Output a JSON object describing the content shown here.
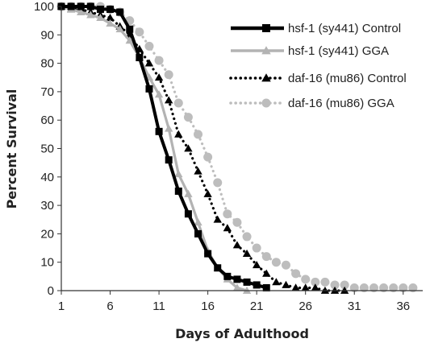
{
  "chart_data": {
    "type": "line",
    "xlabel": "Days of Adulthood",
    "ylabel": "Percent Survival",
    "xlim": [
      1,
      38
    ],
    "ylim": [
      0,
      100
    ],
    "x_ticks": [
      1,
      6,
      11,
      16,
      21,
      26,
      31,
      36
    ],
    "y_ticks": [
      0,
      10,
      20,
      30,
      40,
      50,
      60,
      70,
      80,
      90,
      100
    ],
    "x_tick_labels": [
      "1",
      "6",
      "11",
      "16",
      "21",
      "26",
      "31",
      "36"
    ],
    "y_tick_labels": [
      "0",
      "10",
      "20",
      "30",
      "40",
      "50",
      "60",
      "70",
      "80",
      "90",
      "100"
    ],
    "legend_position": "top-right",
    "series": [
      {
        "name": "hsf-1 (sy441) Control",
        "color": "#000000",
        "line": "solid",
        "marker": "square",
        "x": [
          1,
          2,
          3,
          4,
          5,
          6,
          7,
          8,
          9,
          10,
          11,
          12,
          13,
          14,
          15,
          16,
          17,
          18,
          19,
          20,
          21,
          22
        ],
        "y": [
          100,
          100,
          100,
          100,
          99,
          99,
          98,
          92,
          82,
          71,
          56,
          46,
          35,
          27,
          20,
          13,
          8,
          5,
          4,
          3,
          2,
          1
        ]
      },
      {
        "name": "hsf-1 (sy441) GGA",
        "color": "#b3b3b3",
        "line": "solid",
        "marker": "triangle",
        "x": [
          1,
          2,
          3,
          4,
          5,
          6,
          7,
          8,
          9,
          10,
          11,
          12,
          13,
          14,
          15,
          16,
          17,
          18,
          19,
          20
        ],
        "y": [
          100,
          99,
          98,
          97,
          96,
          94,
          92,
          88,
          82,
          75,
          69,
          57,
          41,
          34,
          24,
          14,
          8,
          4,
          1,
          0
        ]
      },
      {
        "name": "daf-16 (mu86) Control",
        "color": "#000000",
        "line": "dotted",
        "marker": "triangle",
        "x": [
          1,
          2,
          3,
          4,
          5,
          6,
          7,
          8,
          9,
          10,
          11,
          12,
          13,
          14,
          15,
          16,
          17,
          18,
          19,
          20,
          21,
          22,
          23,
          24,
          25,
          26,
          27,
          28,
          29,
          30
        ],
        "y": [
          100,
          99,
          99,
          98,
          97,
          96,
          93,
          90,
          85,
          80,
          75,
          67,
          55,
          50,
          42,
          34,
          25,
          22,
          16,
          13,
          9,
          6,
          3,
          2,
          1,
          1,
          1,
          0,
          0,
          0
        ]
      },
      {
        "name": "daf-16 (mu86) GGA",
        "color": "#bdbdbd",
        "line": "dotted",
        "marker": "circle",
        "x": [
          1,
          2,
          3,
          4,
          5,
          6,
          7,
          8,
          9,
          10,
          11,
          12,
          13,
          14,
          15,
          16,
          17,
          18,
          19,
          20,
          21,
          22,
          23,
          24,
          25,
          26,
          27,
          28,
          29,
          30,
          31,
          32,
          33,
          34,
          35,
          36,
          37
        ],
        "y": [
          100,
          100,
          100,
          100,
          100,
          99,
          98,
          95,
          91,
          86,
          81,
          76,
          66,
          61,
          55,
          47,
          38,
          27,
          24,
          19,
          15,
          12,
          10,
          9,
          6,
          4,
          3,
          3,
          2,
          2,
          1,
          1,
          1,
          1,
          1,
          1,
          1
        ]
      }
    ]
  }
}
